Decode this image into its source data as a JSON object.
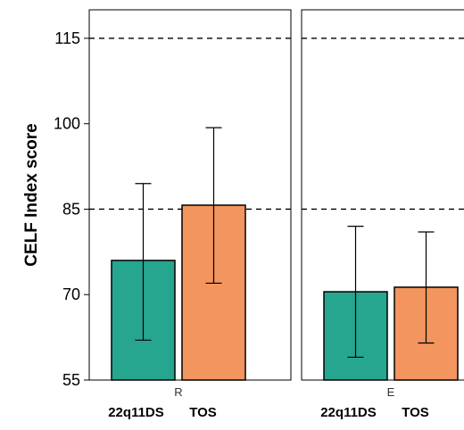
{
  "chart_data": {
    "type": "bar",
    "ylabel": "CELF Index score",
    "ylim": [
      55,
      120
    ],
    "yticks": [
      55,
      70,
      85,
      100,
      115
    ],
    "reference_lines": [
      85,
      115
    ],
    "group_labels": [
      "22q11DS",
      "TOS"
    ],
    "colors": {
      "22q11DS": "#26a58f",
      "TOS": "#f2955f",
      "axis": "#000000"
    },
    "panels": [
      {
        "label": "R",
        "bars": [
          {
            "group": "22q11DS",
            "value": 76,
            "err_low": 62,
            "err_high": 89.5
          },
          {
            "group": "TOS",
            "value": 85.7,
            "err_low": 72,
            "err_high": 99.3
          }
        ]
      },
      {
        "label": "E",
        "bars": [
          {
            "group": "22q11DS",
            "value": 70.5,
            "err_low": 59,
            "err_high": 82
          },
          {
            "group": "TOS",
            "value": 71.3,
            "err_low": 61.5,
            "err_high": 81
          }
        ]
      }
    ]
  }
}
